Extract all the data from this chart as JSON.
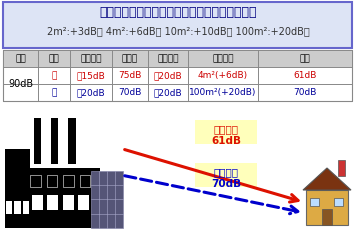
{
  "title": "騑音の放射面が大きい場合は面積効果を考える",
  "subtitle": "2m²:+3dB， 4m²:+6dB， 10m²:+10dB， 100m²:+20dB，",
  "title_color": "#000080",
  "title_bg": "#dde4f5",
  "title_border": "#6666cc",
  "header_row": [
    "屋内",
    "部位",
    "遥音性能",
    "透過音",
    "距離減衰",
    "面積効果",
    "影響"
  ],
  "row1_label": "90dB",
  "row1_part1": "窓",
  "row1_v1": "－15dB",
  "row1_v2": "75dB",
  "row1_v3": "－20dB",
  "row1_v4": "4m²(+6dB)",
  "row1_v5": "61dB",
  "row1_color": "#cc0000",
  "row2_part1": "壁",
  "row2_v1": "－20dB",
  "row2_v2": "70dB",
  "row2_v3": "－20dB",
  "row2_v4": "100m²(+20dB)",
  "row2_v5": "70dB",
  "row2_color": "#000099",
  "label1_text": "窓の影響\n61dB",
  "label2_text": "壁の影響\n70dB",
  "label_bg": "#ffffbb",
  "arrow1_color": "#dd1100",
  "arrow2_color": "#0000cc",
  "bg_color": "#ffffff",
  "header_bg": "#cccccc",
  "table_border": "#888888"
}
